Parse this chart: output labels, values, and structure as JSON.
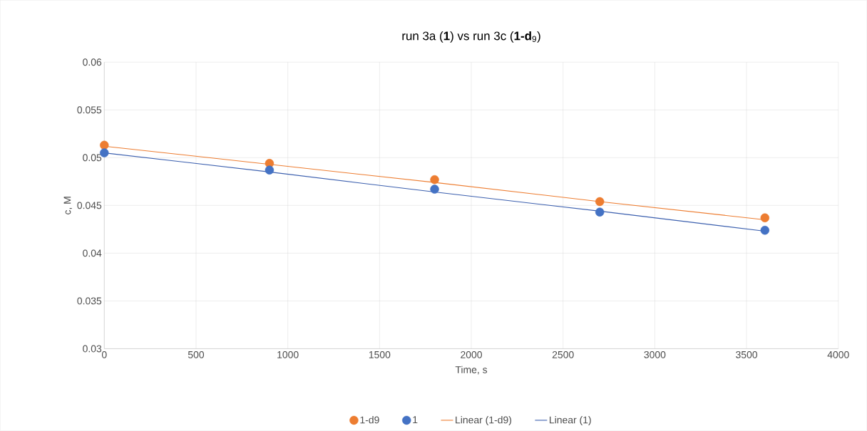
{
  "chart_data": {
    "type": "scatter",
    "title": "run 3a (**1**) vs run 3c (**1-d**$_{9}$)",
    "xlabel": "Time, s",
    "ylabel": "c, M",
    "x": [
      0,
      900,
      1800,
      2700,
      3600
    ],
    "series": [
      {
        "name": "1-d9",
        "marker": "circle",
        "color": "#ed7d31",
        "values": [
          0.0513,
          0.0494,
          0.0477,
          0.0454,
          0.0437
        ]
      },
      {
        "name": "1",
        "marker": "circle",
        "color": "#4472c4",
        "values": [
          0.0505,
          0.0487,
          0.0467,
          0.0443,
          0.0424
        ]
      },
      {
        "name": "Linear (1-d9)",
        "type": "line",
        "marker": "none",
        "color": "#ed7d31",
        "values": [
          0.0512,
          0.0493,
          0.0474,
          0.0454,
          0.0435
        ]
      },
      {
        "name": "Linear (1)",
        "type": "line",
        "marker": "none",
        "color": "#3b5fae",
        "values": [
          0.0505,
          0.0485,
          0.0464,
          0.0444,
          0.0423
        ]
      }
    ],
    "xlim": [
      0,
      4000
    ],
    "xticks": [
      0,
      500,
      1000,
      1500,
      2000,
      2500,
      3000,
      3500,
      4000
    ],
    "ylim": [
      0.03,
      0.06
    ],
    "yticks": [
      0.03,
      0.035,
      0.04,
      0.045,
      0.05,
      0.055,
      0.06
    ],
    "grid": true,
    "legend": "bottom"
  }
}
